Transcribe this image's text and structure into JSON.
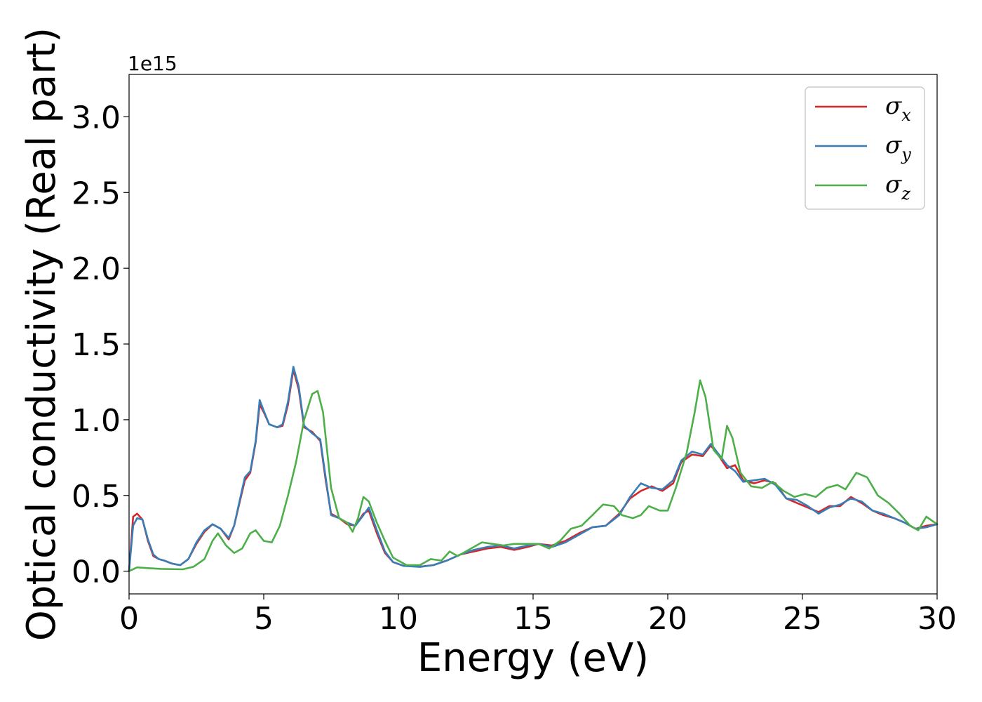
{
  "chart_data": {
    "type": "line",
    "xlabel": "Energy (eV)",
    "ylabel": "Optical conductivity (Real part)",
    "y_offset_text": "1e15",
    "xlim": [
      0,
      30
    ],
    "ylim": [
      -0.15,
      3.28
    ],
    "x_ticks": [
      0,
      5,
      10,
      15,
      20,
      25,
      30
    ],
    "x_tick_labels": [
      "0",
      "5",
      "10",
      "15",
      "20",
      "25",
      "30"
    ],
    "y_ticks": [
      0.0,
      0.5,
      1.0,
      1.5,
      2.0,
      2.5,
      3.0
    ],
    "y_tick_labels": [
      "0.0",
      "0.5",
      "1.0",
      "1.5",
      "2.0",
      "2.5",
      "3.0"
    ],
    "grid": false,
    "legend_position": "top-right",
    "series": [
      {
        "name": "σx",
        "legend_main": "σ",
        "legend_sub": "x",
        "color": "#d62728",
        "points": [
          [
            0,
            0
          ],
          [
            0.15,
            0.36
          ],
          [
            0.3,
            0.38
          ],
          [
            0.5,
            0.34
          ],
          [
            0.7,
            0.2
          ],
          [
            0.9,
            0.1
          ],
          [
            1.1,
            0.08
          ],
          [
            1.3,
            0.07
          ],
          [
            1.6,
            0.05
          ],
          [
            1.9,
            0.04
          ],
          [
            2.2,
            0.08
          ],
          [
            2.5,
            0.18
          ],
          [
            2.8,
            0.26
          ],
          [
            3.1,
            0.31
          ],
          [
            3.4,
            0.28
          ],
          [
            3.7,
            0.21
          ],
          [
            3.9,
            0.3
          ],
          [
            4.1,
            0.45
          ],
          [
            4.3,
            0.6
          ],
          [
            4.5,
            0.65
          ],
          [
            4.7,
            0.85
          ],
          [
            4.85,
            1.1
          ],
          [
            5.0,
            1.05
          ],
          [
            5.2,
            0.97
          ],
          [
            5.5,
            0.95
          ],
          [
            5.7,
            0.96
          ],
          [
            5.9,
            1.1
          ],
          [
            6.1,
            1.33
          ],
          [
            6.3,
            1.2
          ],
          [
            6.5,
            0.95
          ],
          [
            6.8,
            0.92
          ],
          [
            7.1,
            0.86
          ],
          [
            7.3,
            0.6
          ],
          [
            7.5,
            0.38
          ],
          [
            7.8,
            0.35
          ],
          [
            8.1,
            0.31
          ],
          [
            8.4,
            0.3
          ],
          [
            8.7,
            0.38
          ],
          [
            8.9,
            0.4
          ],
          [
            9.2,
            0.25
          ],
          [
            9.5,
            0.12
          ],
          [
            9.8,
            0.06
          ],
          [
            10.2,
            0.035
          ],
          [
            10.8,
            0.03
          ],
          [
            11.3,
            0.04
          ],
          [
            11.8,
            0.07
          ],
          [
            12.3,
            0.11
          ],
          [
            12.8,
            0.13
          ],
          [
            13.3,
            0.15
          ],
          [
            13.8,
            0.16
          ],
          [
            14.3,
            0.14
          ],
          [
            14.8,
            0.16
          ],
          [
            15.2,
            0.18
          ],
          [
            15.7,
            0.17
          ],
          [
            16.2,
            0.2
          ],
          [
            16.7,
            0.25
          ],
          [
            17.2,
            0.29
          ],
          [
            17.7,
            0.3
          ],
          [
            18.2,
            0.38
          ],
          [
            18.6,
            0.48
          ],
          [
            19.0,
            0.53
          ],
          [
            19.4,
            0.56
          ],
          [
            19.8,
            0.53
          ],
          [
            20.2,
            0.58
          ],
          [
            20.5,
            0.72
          ],
          [
            20.9,
            0.77
          ],
          [
            21.3,
            0.76
          ],
          [
            21.6,
            0.83
          ],
          [
            21.9,
            0.76
          ],
          [
            22.2,
            0.68
          ],
          [
            22.5,
            0.7
          ],
          [
            22.8,
            0.6
          ],
          [
            23.2,
            0.58
          ],
          [
            23.6,
            0.6
          ],
          [
            24.0,
            0.58
          ],
          [
            24.4,
            0.48
          ],
          [
            24.8,
            0.45
          ],
          [
            25.2,
            0.42
          ],
          [
            25.6,
            0.39
          ],
          [
            26.0,
            0.43
          ],
          [
            26.4,
            0.43
          ],
          [
            26.8,
            0.49
          ],
          [
            27.2,
            0.45
          ],
          [
            27.6,
            0.4
          ],
          [
            28.0,
            0.37
          ],
          [
            28.4,
            0.35
          ],
          [
            28.8,
            0.32
          ],
          [
            29.2,
            0.28
          ],
          [
            29.6,
            0.3
          ],
          [
            30,
            0.31
          ]
        ]
      },
      {
        "name": "σy",
        "legend_main": "σ",
        "legend_sub": "y",
        "color": "#377eb8",
        "points": [
          [
            0,
            0
          ],
          [
            0.15,
            0.3
          ],
          [
            0.3,
            0.35
          ],
          [
            0.5,
            0.34
          ],
          [
            0.7,
            0.21
          ],
          [
            0.9,
            0.11
          ],
          [
            1.1,
            0.08
          ],
          [
            1.3,
            0.07
          ],
          [
            1.6,
            0.05
          ],
          [
            1.9,
            0.04
          ],
          [
            2.2,
            0.08
          ],
          [
            2.5,
            0.19
          ],
          [
            2.8,
            0.27
          ],
          [
            3.1,
            0.31
          ],
          [
            3.4,
            0.28
          ],
          [
            3.7,
            0.22
          ],
          [
            3.9,
            0.3
          ],
          [
            4.1,
            0.46
          ],
          [
            4.3,
            0.62
          ],
          [
            4.5,
            0.66
          ],
          [
            4.7,
            0.86
          ],
          [
            4.85,
            1.13
          ],
          [
            5.0,
            1.06
          ],
          [
            5.2,
            0.97
          ],
          [
            5.5,
            0.95
          ],
          [
            5.7,
            0.97
          ],
          [
            5.9,
            1.12
          ],
          [
            6.1,
            1.35
          ],
          [
            6.3,
            1.22
          ],
          [
            6.5,
            0.96
          ],
          [
            6.8,
            0.91
          ],
          [
            7.1,
            0.87
          ],
          [
            7.3,
            0.62
          ],
          [
            7.5,
            0.37
          ],
          [
            7.8,
            0.35
          ],
          [
            8.1,
            0.32
          ],
          [
            8.4,
            0.3
          ],
          [
            8.7,
            0.37
          ],
          [
            8.9,
            0.42
          ],
          [
            9.2,
            0.27
          ],
          [
            9.5,
            0.13
          ],
          [
            9.8,
            0.06
          ],
          [
            10.2,
            0.035
          ],
          [
            10.8,
            0.028
          ],
          [
            11.3,
            0.04
          ],
          [
            11.8,
            0.07
          ],
          [
            12.3,
            0.11
          ],
          [
            12.8,
            0.14
          ],
          [
            13.3,
            0.16
          ],
          [
            13.8,
            0.17
          ],
          [
            14.3,
            0.15
          ],
          [
            14.8,
            0.17
          ],
          [
            15.2,
            0.18
          ],
          [
            15.7,
            0.16
          ],
          [
            16.2,
            0.19
          ],
          [
            16.7,
            0.24
          ],
          [
            17.2,
            0.29
          ],
          [
            17.7,
            0.3
          ],
          [
            18.2,
            0.37
          ],
          [
            18.6,
            0.49
          ],
          [
            19.0,
            0.58
          ],
          [
            19.4,
            0.55
          ],
          [
            19.8,
            0.54
          ],
          [
            20.2,
            0.6
          ],
          [
            20.5,
            0.73
          ],
          [
            20.9,
            0.79
          ],
          [
            21.3,
            0.77
          ],
          [
            21.6,
            0.84
          ],
          [
            21.9,
            0.77
          ],
          [
            22.2,
            0.7
          ],
          [
            22.5,
            0.66
          ],
          [
            22.8,
            0.59
          ],
          [
            23.2,
            0.6
          ],
          [
            23.6,
            0.61
          ],
          [
            24.0,
            0.57
          ],
          [
            24.4,
            0.48
          ],
          [
            24.8,
            0.47
          ],
          [
            25.2,
            0.43
          ],
          [
            25.6,
            0.38
          ],
          [
            26.0,
            0.42
          ],
          [
            26.4,
            0.44
          ],
          [
            26.8,
            0.48
          ],
          [
            27.2,
            0.46
          ],
          [
            27.6,
            0.4
          ],
          [
            28.0,
            0.38
          ],
          [
            28.4,
            0.35
          ],
          [
            28.8,
            0.32
          ],
          [
            29.2,
            0.28
          ],
          [
            29.6,
            0.29
          ],
          [
            30,
            0.31
          ]
        ]
      },
      {
        "name": "σz",
        "legend_main": "σ",
        "legend_sub": "z",
        "color": "#4daf4a",
        "points": [
          [
            0,
            0
          ],
          [
            0.3,
            0.025
          ],
          [
            0.7,
            0.02
          ],
          [
            1.2,
            0.015
          ],
          [
            2.0,
            0.012
          ],
          [
            2.4,
            0.03
          ],
          [
            2.8,
            0.08
          ],
          [
            3.1,
            0.2
          ],
          [
            3.3,
            0.25
          ],
          [
            3.6,
            0.17
          ],
          [
            3.9,
            0.12
          ],
          [
            4.2,
            0.15
          ],
          [
            4.5,
            0.25
          ],
          [
            4.7,
            0.27
          ],
          [
            5.0,
            0.2
          ],
          [
            5.3,
            0.19
          ],
          [
            5.6,
            0.3
          ],
          [
            5.9,
            0.5
          ],
          [
            6.2,
            0.72
          ],
          [
            6.5,
            1.0
          ],
          [
            6.8,
            1.17
          ],
          [
            7.0,
            1.19
          ],
          [
            7.2,
            1.05
          ],
          [
            7.5,
            0.55
          ],
          [
            7.8,
            0.35
          ],
          [
            8.1,
            0.32
          ],
          [
            8.3,
            0.26
          ],
          [
            8.5,
            0.35
          ],
          [
            8.7,
            0.49
          ],
          [
            8.9,
            0.46
          ],
          [
            9.2,
            0.32
          ],
          [
            9.5,
            0.2
          ],
          [
            9.8,
            0.09
          ],
          [
            10.3,
            0.04
          ],
          [
            10.8,
            0.04
          ],
          [
            11.2,
            0.08
          ],
          [
            11.6,
            0.07
          ],
          [
            11.9,
            0.13
          ],
          [
            12.2,
            0.1
          ],
          [
            12.7,
            0.15
          ],
          [
            13.1,
            0.19
          ],
          [
            13.5,
            0.18
          ],
          [
            13.9,
            0.17
          ],
          [
            14.3,
            0.18
          ],
          [
            14.8,
            0.18
          ],
          [
            15.2,
            0.18
          ],
          [
            15.6,
            0.15
          ],
          [
            16.0,
            0.2
          ],
          [
            16.4,
            0.28
          ],
          [
            16.8,
            0.3
          ],
          [
            17.2,
            0.37
          ],
          [
            17.6,
            0.44
          ],
          [
            18.0,
            0.43
          ],
          [
            18.3,
            0.37
          ],
          [
            18.7,
            0.35
          ],
          [
            19.0,
            0.37
          ],
          [
            19.3,
            0.43
          ],
          [
            19.7,
            0.4
          ],
          [
            20.0,
            0.4
          ],
          [
            20.3,
            0.55
          ],
          [
            20.7,
            0.78
          ],
          [
            21.0,
            1.05
          ],
          [
            21.2,
            1.26
          ],
          [
            21.4,
            1.15
          ],
          [
            21.7,
            0.8
          ],
          [
            22.0,
            0.74
          ],
          [
            22.2,
            0.96
          ],
          [
            22.4,
            0.88
          ],
          [
            22.7,
            0.65
          ],
          [
            23.1,
            0.56
          ],
          [
            23.5,
            0.55
          ],
          [
            23.9,
            0.59
          ],
          [
            24.3,
            0.53
          ],
          [
            24.7,
            0.49
          ],
          [
            25.1,
            0.51
          ],
          [
            25.5,
            0.49
          ],
          [
            25.9,
            0.55
          ],
          [
            26.3,
            0.57
          ],
          [
            26.6,
            0.54
          ],
          [
            27.0,
            0.65
          ],
          [
            27.4,
            0.62
          ],
          [
            27.8,
            0.5
          ],
          [
            28.2,
            0.45
          ],
          [
            28.6,
            0.38
          ],
          [
            29.0,
            0.3
          ],
          [
            29.3,
            0.27
          ],
          [
            29.6,
            0.36
          ],
          [
            30,
            0.31
          ]
        ]
      }
    ]
  }
}
